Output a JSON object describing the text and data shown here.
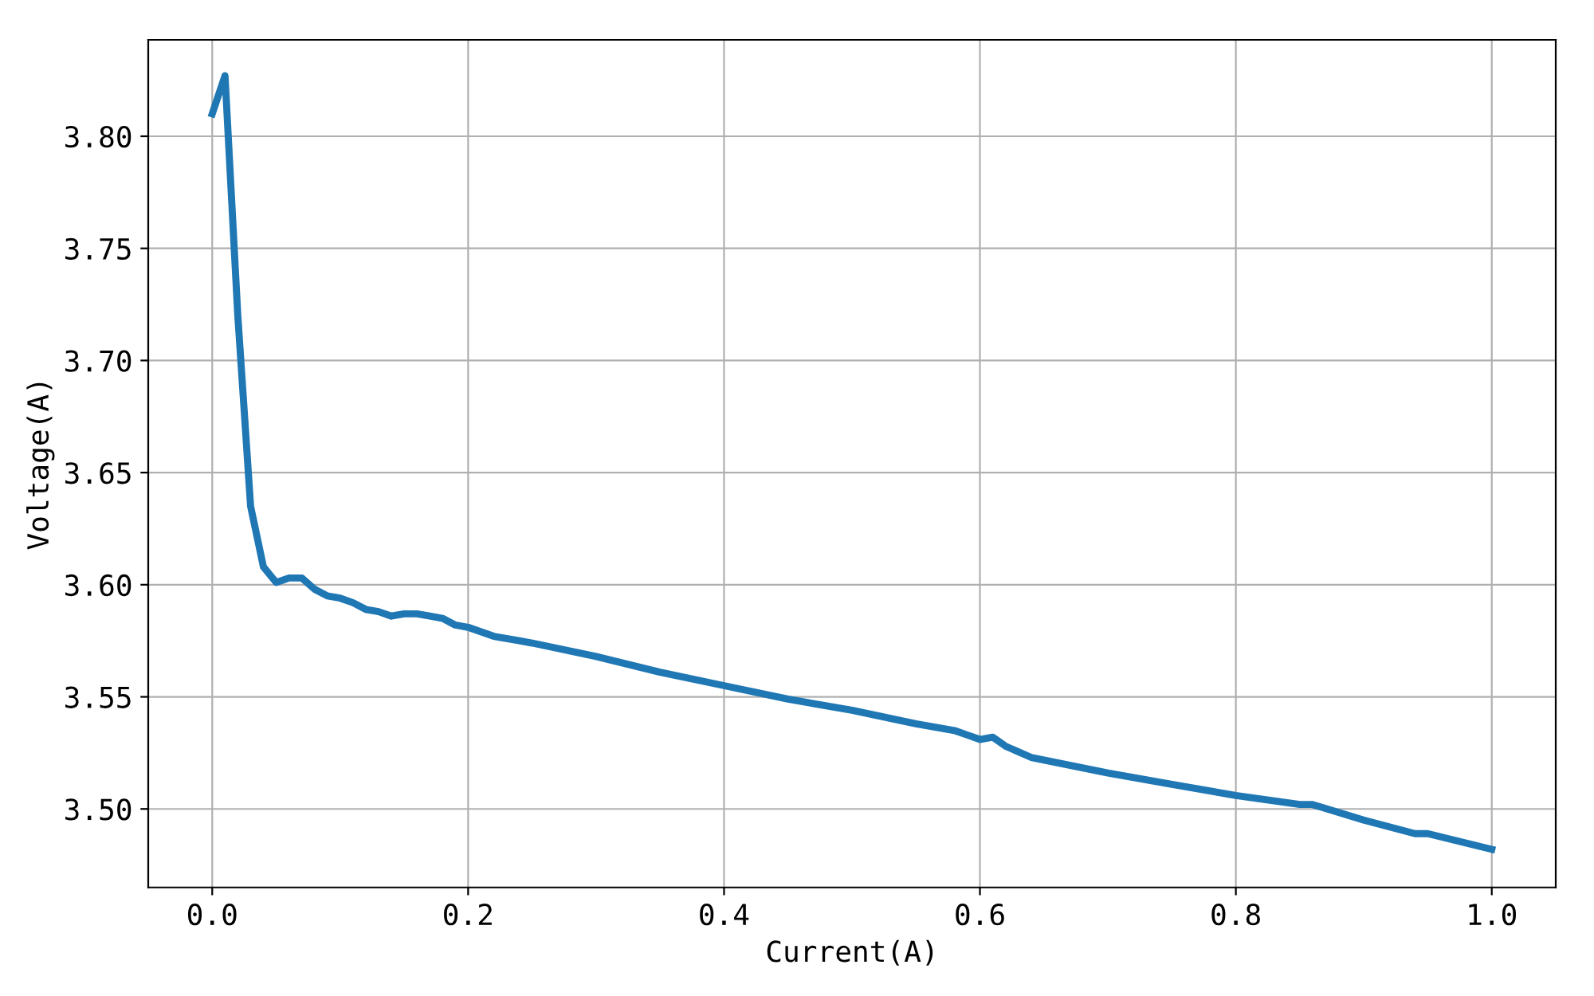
{
  "chart_data": {
    "type": "line",
    "xlabel": "Current(A)",
    "ylabel": "Voltage(A)",
    "x": [
      0.0,
      0.01,
      0.02,
      0.03,
      0.04,
      0.05,
      0.06,
      0.07,
      0.08,
      0.09,
      0.1,
      0.11,
      0.12,
      0.13,
      0.14,
      0.15,
      0.16,
      0.17,
      0.18,
      0.19,
      0.2,
      0.22,
      0.24,
      0.25,
      0.3,
      0.35,
      0.4,
      0.45,
      0.5,
      0.55,
      0.58,
      0.59,
      0.6,
      0.61,
      0.62,
      0.64,
      0.7,
      0.75,
      0.8,
      0.85,
      0.86,
      0.9,
      0.94,
      0.95,
      1.0
    ],
    "series": [
      {
        "color": "#1f77b4",
        "values": [
          3.81,
          3.827,
          3.72,
          3.635,
          3.608,
          3.601,
          3.603,
          3.603,
          3.598,
          3.595,
          3.594,
          3.592,
          3.589,
          3.588,
          3.586,
          3.587,
          3.587,
          3.586,
          3.585,
          3.582,
          3.581,
          3.577,
          3.575,
          3.574,
          3.568,
          3.561,
          3.555,
          3.549,
          3.544,
          3.538,
          3.535,
          3.533,
          3.531,
          3.532,
          3.528,
          3.523,
          3.516,
          3.511,
          3.506,
          3.502,
          3.502,
          3.495,
          3.489,
          3.489,
          3.482
        ]
      }
    ],
    "xlim": [
      -0.05,
      1.05
    ],
    "ylim": [
      3.465,
      3.843
    ],
    "xticks": [
      {
        "value": 0.0,
        "label": "0.0"
      },
      {
        "value": 0.2,
        "label": "0.2"
      },
      {
        "value": 0.4,
        "label": "0.4"
      },
      {
        "value": 0.6,
        "label": "0.6"
      },
      {
        "value": 0.8,
        "label": "0.8"
      },
      {
        "value": 1.0,
        "label": "1.0"
      }
    ],
    "yticks": [
      {
        "value": 3.5,
        "label": "3.50"
      },
      {
        "value": 3.55,
        "label": "3.55"
      },
      {
        "value": 3.6,
        "label": "3.60"
      },
      {
        "value": 3.65,
        "label": "3.65"
      },
      {
        "value": 3.7,
        "label": "3.70"
      },
      {
        "value": 3.75,
        "label": "3.75"
      },
      {
        "value": 3.8,
        "label": "3.80"
      }
    ],
    "grid": true,
    "line_style": "solid"
  }
}
